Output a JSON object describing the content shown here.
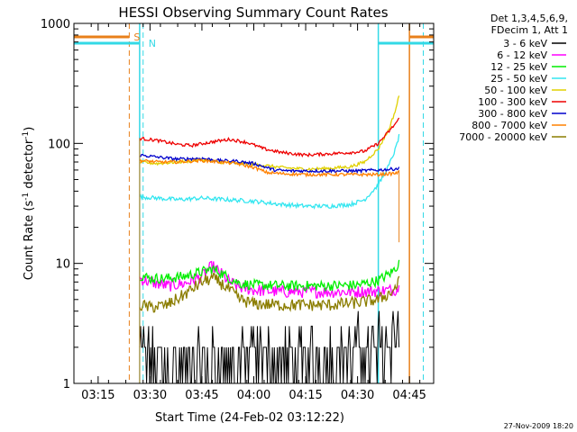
{
  "chart_data": {
    "type": "line",
    "title": "HESSI Observing Summary Count Rates",
    "xlabel": "Start Time (24-Feb-02 03:12:22)",
    "ylabel_main": "Count Rate (s",
    "ylabel_exp1": "-1",
    "ylabel_mid": " detector",
    "ylabel_exp2": "-1",
    "ylabel_end": ")",
    "y_scale": "log",
    "ylim": [
      1,
      1000
    ],
    "xlim": [
      "03:08",
      "04:52"
    ],
    "x_ticks": [
      "03:15",
      "03:30",
      "03:45",
      "04:00",
      "04:15",
      "04:30",
      "04:45"
    ],
    "y_ticks": [
      "1",
      "10",
      "100",
      "1000"
    ],
    "legend_header": [
      "Det 1,3,4,5,6,9,",
      "FDecim 1, Att 1"
    ],
    "footer_date": "27-Nov-2009 18:20",
    "markers": [
      {
        "label": "S",
        "color": "#e8801a"
      },
      {
        "label": "N",
        "color": "#33d9e6"
      }
    ],
    "series": [
      {
        "name": "3 - 6 keV",
        "color": "#000000",
        "points": [
          [
            "03:27",
            1.8
          ],
          [
            "03:30",
            1.6
          ],
          [
            "03:33",
            1.5
          ],
          [
            "03:38",
            1.5
          ],
          [
            "03:45",
            1.5
          ],
          [
            "03:52",
            1.6
          ],
          [
            "04:00",
            1.7
          ],
          [
            "04:08",
            1.5
          ],
          [
            "04:15",
            1.6
          ],
          [
            "04:22",
            1.7
          ],
          [
            "04:30",
            1.8
          ],
          [
            "04:35",
            2.0
          ],
          [
            "04:39",
            2.5
          ],
          [
            "04:42",
            2.8
          ]
        ]
      },
      {
        "name": "6 - 12 keV",
        "color": "#ff00ff",
        "points": [
          [
            "03:27",
            7.5
          ],
          [
            "03:30",
            7.0
          ],
          [
            "03:35",
            6.5
          ],
          [
            "03:40",
            6.8
          ],
          [
            "03:45",
            7.8
          ],
          [
            "03:48",
            9.5
          ],
          [
            "03:50",
            8.5
          ],
          [
            "03:53",
            7.0
          ],
          [
            "03:56",
            6.3
          ],
          [
            "04:00",
            6.0
          ],
          [
            "04:08",
            5.8
          ],
          [
            "04:15",
            5.8
          ],
          [
            "04:22",
            5.8
          ],
          [
            "04:30",
            5.8
          ],
          [
            "04:36",
            5.9
          ],
          [
            "04:40",
            6.0
          ],
          [
            "04:42",
            6.2
          ]
        ]
      },
      {
        "name": "12 - 25 keV",
        "color": "#00ee00",
        "points": [
          [
            "03:27",
            8.0
          ],
          [
            "03:30",
            7.5
          ],
          [
            "03:35",
            7.5
          ],
          [
            "03:40",
            7.8
          ],
          [
            "03:45",
            8.5
          ],
          [
            "03:48",
            9.0
          ],
          [
            "03:50",
            8.5
          ],
          [
            "03:53",
            7.5
          ],
          [
            "03:56",
            6.8
          ],
          [
            "04:00",
            6.6
          ],
          [
            "04:10",
            6.5
          ],
          [
            "04:20",
            6.5
          ],
          [
            "04:30",
            6.6
          ],
          [
            "04:36",
            7.2
          ],
          [
            "04:40",
            8.5
          ],
          [
            "04:42",
            10.0
          ]
        ]
      },
      {
        "name": "25 - 50 keV",
        "color": "#33e6f0",
        "points": [
          [
            "03:27",
            36
          ],
          [
            "03:32",
            35
          ],
          [
            "03:38",
            34
          ],
          [
            "03:45",
            35
          ],
          [
            "03:52",
            34
          ],
          [
            "04:00",
            33
          ],
          [
            "04:08",
            31
          ],
          [
            "04:15",
            30
          ],
          [
            "04:22",
            30
          ],
          [
            "04:28",
            31
          ],
          [
            "04:32",
            34
          ],
          [
            "04:36",
            45
          ],
          [
            "04:39",
            65
          ],
          [
            "04:41",
            90
          ],
          [
            "04:42",
            115
          ]
        ]
      },
      {
        "name": "50 - 100 keV",
        "color": "#e0d000",
        "points": [
          [
            "03:27",
            70
          ],
          [
            "03:32",
            68
          ],
          [
            "03:38",
            70
          ],
          [
            "03:45",
            73
          ],
          [
            "03:50",
            70
          ],
          [
            "03:55",
            68
          ],
          [
            "04:00",
            67
          ],
          [
            "04:08",
            63
          ],
          [
            "04:15",
            61
          ],
          [
            "04:22",
            62
          ],
          [
            "04:28",
            64
          ],
          [
            "04:32",
            70
          ],
          [
            "04:36",
            90
          ],
          [
            "04:39",
            130
          ],
          [
            "04:41",
            190
          ],
          [
            "04:42",
            250
          ]
        ]
      },
      {
        "name": "100 - 300 keV",
        "color": "#ee0000",
        "points": [
          [
            "03:27",
            110
          ],
          [
            "03:32",
            106
          ],
          [
            "03:38",
            98
          ],
          [
            "03:42",
            96
          ],
          [
            "03:48",
            103
          ],
          [
            "03:53",
            108
          ],
          [
            "03:58",
            102
          ],
          [
            "04:03",
            90
          ],
          [
            "04:08",
            84
          ],
          [
            "04:15",
            80
          ],
          [
            "04:22",
            82
          ],
          [
            "04:28",
            84
          ],
          [
            "04:32",
            86
          ],
          [
            "04:36",
            100
          ],
          [
            "04:40",
            135
          ],
          [
            "04:42",
            160
          ]
        ]
      },
      {
        "name": "300 - 800 keV",
        "color": "#0000cc",
        "points": [
          [
            "03:27",
            80
          ],
          [
            "03:32",
            77
          ],
          [
            "03:38",
            74
          ],
          [
            "03:45",
            75
          ],
          [
            "03:50",
            72
          ],
          [
            "03:55",
            71
          ],
          [
            "04:00",
            68
          ],
          [
            "04:06",
            60
          ],
          [
            "04:10",
            59
          ],
          [
            "04:20",
            59
          ],
          [
            "04:30",
            59
          ],
          [
            "04:36",
            60
          ],
          [
            "04:40",
            61
          ],
          [
            "04:42",
            62
          ]
        ]
      },
      {
        "name": "800 - 7000 keV",
        "color": "#ff8000",
        "points": [
          [
            "03:27",
            72
          ],
          [
            "03:32",
            70
          ],
          [
            "03:38",
            70
          ],
          [
            "03:45",
            72
          ],
          [
            "03:50",
            70
          ],
          [
            "03:55",
            68
          ],
          [
            "04:00",
            63
          ],
          [
            "04:04",
            57
          ],
          [
            "04:08",
            56
          ],
          [
            "04:15",
            55
          ],
          [
            "04:22",
            55
          ],
          [
            "04:30",
            55
          ],
          [
            "04:36",
            55
          ],
          [
            "04:40",
            56
          ],
          [
            "04:42",
            57
          ]
        ]
      },
      {
        "name": "7000 - 20000 keV",
        "color": "#8b7d00",
        "points": [
          [
            "03:27",
            4.5
          ],
          [
            "03:30",
            4.3
          ],
          [
            "03:35",
            4.5
          ],
          [
            "03:40",
            5.5
          ],
          [
            "03:45",
            7.0
          ],
          [
            "03:48",
            7.5
          ],
          [
            "03:50",
            7.0
          ],
          [
            "03:53",
            6.0
          ],
          [
            "03:56",
            5.0
          ],
          [
            "04:00",
            4.6
          ],
          [
            "04:08",
            4.5
          ],
          [
            "04:15",
            4.5
          ],
          [
            "04:22",
            4.5
          ],
          [
            "04:30",
            4.7
          ],
          [
            "04:36",
            5.0
          ],
          [
            "04:40",
            5.8
          ],
          [
            "04:42",
            7.0
          ]
        ]
      }
    ],
    "colors": {
      "S_marker": "#e8801a",
      "N_marker": "#33d9e6"
    }
  }
}
